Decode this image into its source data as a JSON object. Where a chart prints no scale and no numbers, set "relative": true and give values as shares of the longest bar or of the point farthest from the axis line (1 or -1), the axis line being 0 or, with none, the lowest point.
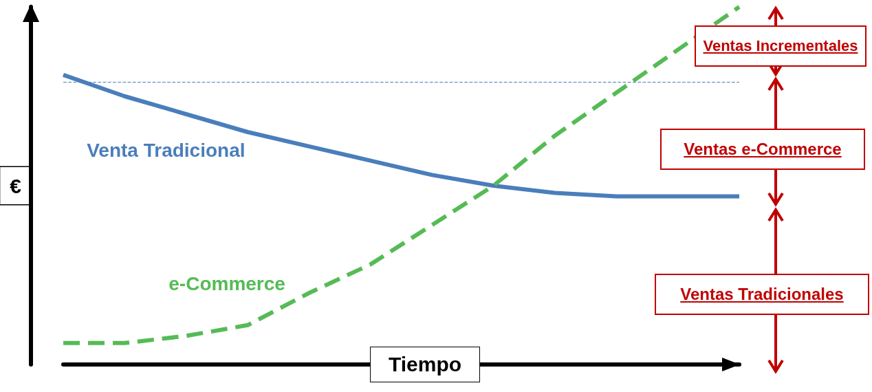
{
  "chart_data": {
    "type": "line",
    "relative": true,
    "xlabel": "Tiempo",
    "ylabel": "€",
    "marker": "none",
    "grid": false,
    "categories": [
      null,
      null,
      null,
      null,
      null,
      null,
      null,
      null,
      null,
      null,
      null,
      null
    ],
    "series": [
      {
        "name": "Venta Tradicional",
        "color": "#4a7ebb",
        "line_style": "solid",
        "values": [
          0.81,
          0.75,
          0.7,
          0.65,
          0.61,
          0.57,
          0.53,
          0.5,
          0.48,
          0.47,
          0.47,
          0.47
        ]
      },
      {
        "name": "e-Commerce",
        "color": "#55bb55",
        "line_style": "dashed",
        "values": [
          0.06,
          0.06,
          0.08,
          0.11,
          0.2,
          0.28,
          0.39,
          0.5,
          0.64,
          0.76,
          0.88,
          1.0
        ]
      }
    ],
    "ref_lines": [
      {
        "axis": "y",
        "value": 0.79,
        "color": "#4a7ebb",
        "line_style": "dashed"
      }
    ],
    "annotations": [
      "Ventas Incrementales",
      "Ventas e-Commerce",
      "Ventas Tradicionales"
    ]
  }
}
